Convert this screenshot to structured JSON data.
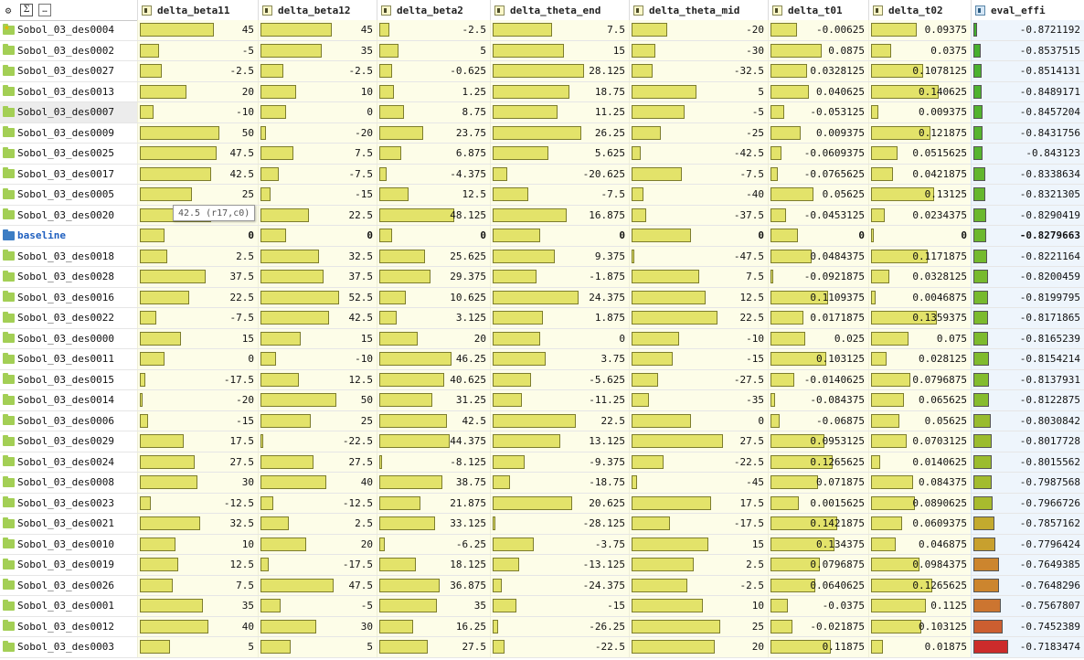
{
  "toolbar": {
    "settings_icon": "gear-icon",
    "sigma_glyph": "Σ",
    "more_glyph": "…"
  },
  "columns": [
    {
      "key": "delta_beta11",
      "label": "delta_beta11",
      "icon": "column-bar-icon",
      "min": -20,
      "max": 50
    },
    {
      "key": "delta_beta12",
      "label": "delta_beta12",
      "icon": "column-bar-icon",
      "min": -22.5,
      "max": 52.5
    },
    {
      "key": "delta_beta2",
      "label": "delta_beta2",
      "icon": "column-bar-icon",
      "min": -8.125,
      "max": 48.125
    },
    {
      "key": "delta_theta_end",
      "label": "delta_theta_end",
      "icon": "column-bar-icon",
      "min": -28.125,
      "max": 28.125
    },
    {
      "key": "delta_theta_mid",
      "label": "delta_theta_mid",
      "icon": "column-bar-icon",
      "min": -47.5,
      "max": 27.5
    },
    {
      "key": "delta_t01",
      "label": "delta_t01",
      "icon": "column-bar-icon",
      "min": -0.0921875,
      "max": 0.1421875
    },
    {
      "key": "delta_t02",
      "label": "delta_t02",
      "icon": "column-bar-icon",
      "min": 0,
      "max": 0.140625
    },
    {
      "key": "eval_effi",
      "label": "eval_effi",
      "icon": "column-color-icon",
      "min": -0.8721192,
      "max": -0.7183474
    }
  ],
  "rows": [
    {
      "name": "Sobol_03_des0004",
      "starred": true,
      "values": [
        "45",
        "45",
        "-2.5",
        "7.5",
        "-20",
        "-0.00625",
        "0.09375",
        "-0.8721192"
      ],
      "eff_color": "#3fae2e"
    },
    {
      "name": "Sobol_03_des0002",
      "values": [
        "-5",
        "35",
        "5",
        "15",
        "-30",
        "0.0875",
        "0.0375",
        "-0.8537515"
      ],
      "eff_color": "#47b02e"
    },
    {
      "name": "Sobol_03_des0027",
      "values": [
        "-2.5",
        "-2.5",
        "-0.625",
        "28.125",
        "-32.5",
        "0.0328125",
        "0.1078125",
        "-0.8514131"
      ],
      "eff_color": "#4ab12e"
    },
    {
      "name": "Sobol_03_des0013",
      "values": [
        "20",
        "10",
        "1.25",
        "18.75",
        "5",
        "0.040625",
        "0.140625",
        "-0.8489171"
      ],
      "eff_color": "#4db22e"
    },
    {
      "name": "Sobol_03_des0007",
      "selected": true,
      "values": [
        "-10",
        "0",
        "8.75",
        "11.25",
        "-5",
        "-0.053125",
        "0.009375",
        "-0.8457204"
      ],
      "eff_color": "#52b32e"
    },
    {
      "name": "Sobol_03_des0009",
      "values": [
        "50",
        "-20",
        "23.75",
        "26.25",
        "-25",
        "0.009375",
        "0.121875",
        "-0.8431756"
      ],
      "eff_color": "#56b42e"
    },
    {
      "name": "Sobol_03_des0025",
      "values": [
        "47.5",
        "7.5",
        "6.875",
        "5.625",
        "-42.5",
        "-0.0609375",
        "0.0515625",
        "-0.843123"
      ],
      "eff_color": "#56b42e"
    },
    {
      "name": "Sobol_03_des0017",
      "values": [
        "42.5",
        "-7.5",
        "-4.375",
        "-20.625",
        "-7.5",
        "-0.0765625",
        "0.0421875",
        "-0.8338634"
      ],
      "eff_color": "#63b62e"
    },
    {
      "name": "Sobol_03_des0005",
      "values": [
        "25",
        "-15",
        "12.5",
        "-7.5",
        "-40",
        "0.05625",
        "0.13125",
        "-0.8321305"
      ],
      "eff_color": "#66b72e"
    },
    {
      "name": "Sobol_03_des0020",
      "values": [
        "42.5",
        "22.5",
        "48.125",
        "16.875",
        "-37.5",
        "-0.0453125",
        "0.0234375",
        "-0.8290419"
      ],
      "eff_color": "#6ab82e"
    },
    {
      "name": "baseline",
      "baseline": true,
      "values": [
        "0",
        "0",
        "0",
        "0",
        "0",
        "0",
        "0",
        "-0.8279663"
      ],
      "eff_color": "#6cb82e"
    },
    {
      "name": "Sobol_03_des0018",
      "values": [
        "2.5",
        "32.5",
        "25.625",
        "9.375",
        "-47.5",
        "0.0484375",
        "0.1171875",
        "-0.8221164"
      ],
      "eff_color": "#74ba2e"
    },
    {
      "name": "Sobol_03_des0028",
      "values": [
        "37.5",
        "37.5",
        "29.375",
        "-1.875",
        "7.5",
        "-0.0921875",
        "0.0328125",
        "-0.8200459"
      ],
      "eff_color": "#77ba2e"
    },
    {
      "name": "Sobol_03_des0016",
      "values": [
        "22.5",
        "52.5",
        "10.625",
        "24.375",
        "12.5",
        "0.1109375",
        "0.0046875",
        "-0.8199795"
      ],
      "eff_color": "#77ba2e"
    },
    {
      "name": "Sobol_03_des0022",
      "values": [
        "-7.5",
        "42.5",
        "3.125",
        "1.875",
        "22.5",
        "0.0171875",
        "0.1359375",
        "-0.8171865"
      ],
      "eff_color": "#7cbb2e"
    },
    {
      "name": "Sobol_03_des0000",
      "values": [
        "15",
        "15",
        "20",
        "0",
        "-10",
        "0.025",
        "0.075",
        "-0.8165239"
      ],
      "eff_color": "#7dbb2e"
    },
    {
      "name": "Sobol_03_des0011",
      "values": [
        "0",
        "-10",
        "46.25",
        "3.75",
        "-15",
        "0.103125",
        "0.028125",
        "-0.8154214"
      ],
      "eff_color": "#80bb2e"
    },
    {
      "name": "Sobol_03_des0015",
      "values": [
        "-17.5",
        "12.5",
        "40.625",
        "-5.625",
        "-27.5",
        "-0.0140625",
        "0.0796875",
        "-0.8137931"
      ],
      "eff_color": "#83bc2e"
    },
    {
      "name": "Sobol_03_des0014",
      "values": [
        "-20",
        "50",
        "31.25",
        "-11.25",
        "-35",
        "-0.084375",
        "0.065625",
        "-0.8122875"
      ],
      "eff_color": "#86bc2e"
    },
    {
      "name": "Sobol_03_des0006",
      "values": [
        "-15",
        "25",
        "42.5",
        "22.5",
        "0",
        "-0.06875",
        "0.05625",
        "-0.8030842"
      ],
      "eff_color": "#98bc2e"
    },
    {
      "name": "Sobol_03_des0029",
      "values": [
        "17.5",
        "-22.5",
        "44.375",
        "13.125",
        "27.5",
        "0.0953125",
        "0.0703125",
        "-0.8017728"
      ],
      "eff_color": "#9bbc2e"
    },
    {
      "name": "Sobol_03_des0024",
      "values": [
        "27.5",
        "27.5",
        "-8.125",
        "-9.375",
        "-22.5",
        "0.1265625",
        "0.0140625",
        "-0.8015562"
      ],
      "eff_color": "#9bbc2e"
    },
    {
      "name": "Sobol_03_des0008",
      "values": [
        "30",
        "40",
        "38.75",
        "-18.75",
        "-45",
        "0.071875",
        "0.084375",
        "-0.7987568"
      ],
      "eff_color": "#a3bc2e"
    },
    {
      "name": "Sobol_03_des0023",
      "values": [
        "-12.5",
        "-12.5",
        "21.875",
        "20.625",
        "17.5",
        "0.0015625",
        "0.0890625",
        "-0.7966726"
      ],
      "eff_color": "#a8bb2e"
    },
    {
      "name": "Sobol_03_des0021",
      "values": [
        "32.5",
        "2.5",
        "33.125",
        "-28.125",
        "-17.5",
        "0.1421875",
        "0.0609375",
        "-0.7857162"
      ],
      "eff_color": "#c3aa2e"
    },
    {
      "name": "Sobol_03_des0010",
      "values": [
        "10",
        "20",
        "-6.25",
        "-3.75",
        "15",
        "0.134375",
        "0.046875",
        "-0.7796424"
      ],
      "eff_color": "#c8a02e"
    },
    {
      "name": "Sobol_03_des0019",
      "values": [
        "12.5",
        "-17.5",
        "18.125",
        "-13.125",
        "2.5",
        "0.0796875",
        "0.0984375",
        "-0.7649385"
      ],
      "eff_color": "#cc852e"
    },
    {
      "name": "Sobol_03_des0026",
      "values": [
        "7.5",
        "47.5",
        "36.875",
        "-24.375",
        "-2.5",
        "0.0640625",
        "0.1265625",
        "-0.7648296"
      ],
      "eff_color": "#cc852e"
    },
    {
      "name": "Sobol_03_des0001",
      "values": [
        "35",
        "-5",
        "35",
        "-15",
        "10",
        "-0.0375",
        "0.1125",
        "-0.7567807"
      ],
      "eff_color": "#cc7530"
    },
    {
      "name": "Sobol_03_des0012",
      "values": [
        "40",
        "30",
        "16.25",
        "-26.25",
        "25",
        "-0.021875",
        "0.103125",
        "-0.7452389"
      ],
      "eff_color": "#cc5e30"
    },
    {
      "name": "Sobol_03_des0003",
      "values": [
        "5",
        "5",
        "27.5",
        "-22.5",
        "20",
        "0.11875",
        "0.01875",
        "-0.7183474"
      ],
      "eff_color": "#cc2b2b"
    }
  ],
  "tooltip": {
    "text": "42.5 (r17,c0)"
  }
}
